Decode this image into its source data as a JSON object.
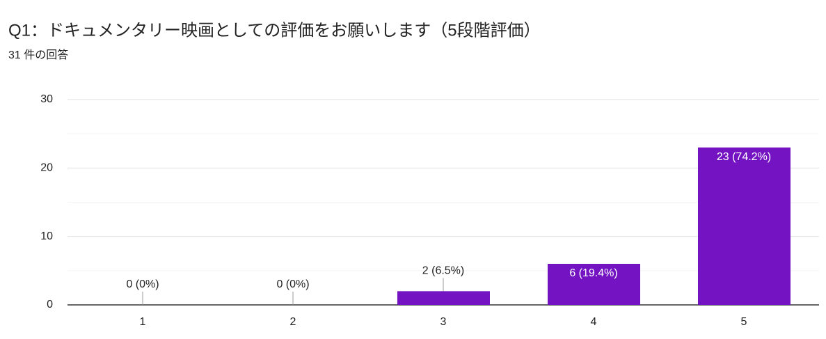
{
  "chart_data": {
    "type": "bar",
    "title": "Q1：ドキュメンタリー映画としての評価をお願いします（5段階評価）",
    "subtitle": "31 件の回答",
    "categories": [
      "1",
      "2",
      "3",
      "4",
      "5"
    ],
    "values": [
      0,
      0,
      2,
      6,
      23
    ],
    "value_labels": [
      "0 (0%)",
      "0 (0%)",
      "2 (6.5%)",
      "6 (19.4%)",
      "23 (74.2%)"
    ],
    "color": "#7413c1",
    "ylim": [
      0,
      30
    ],
    "yticks": [
      0,
      10,
      20,
      30
    ],
    "minor_yticks": [
      5,
      15,
      25
    ],
    "grid": true
  }
}
